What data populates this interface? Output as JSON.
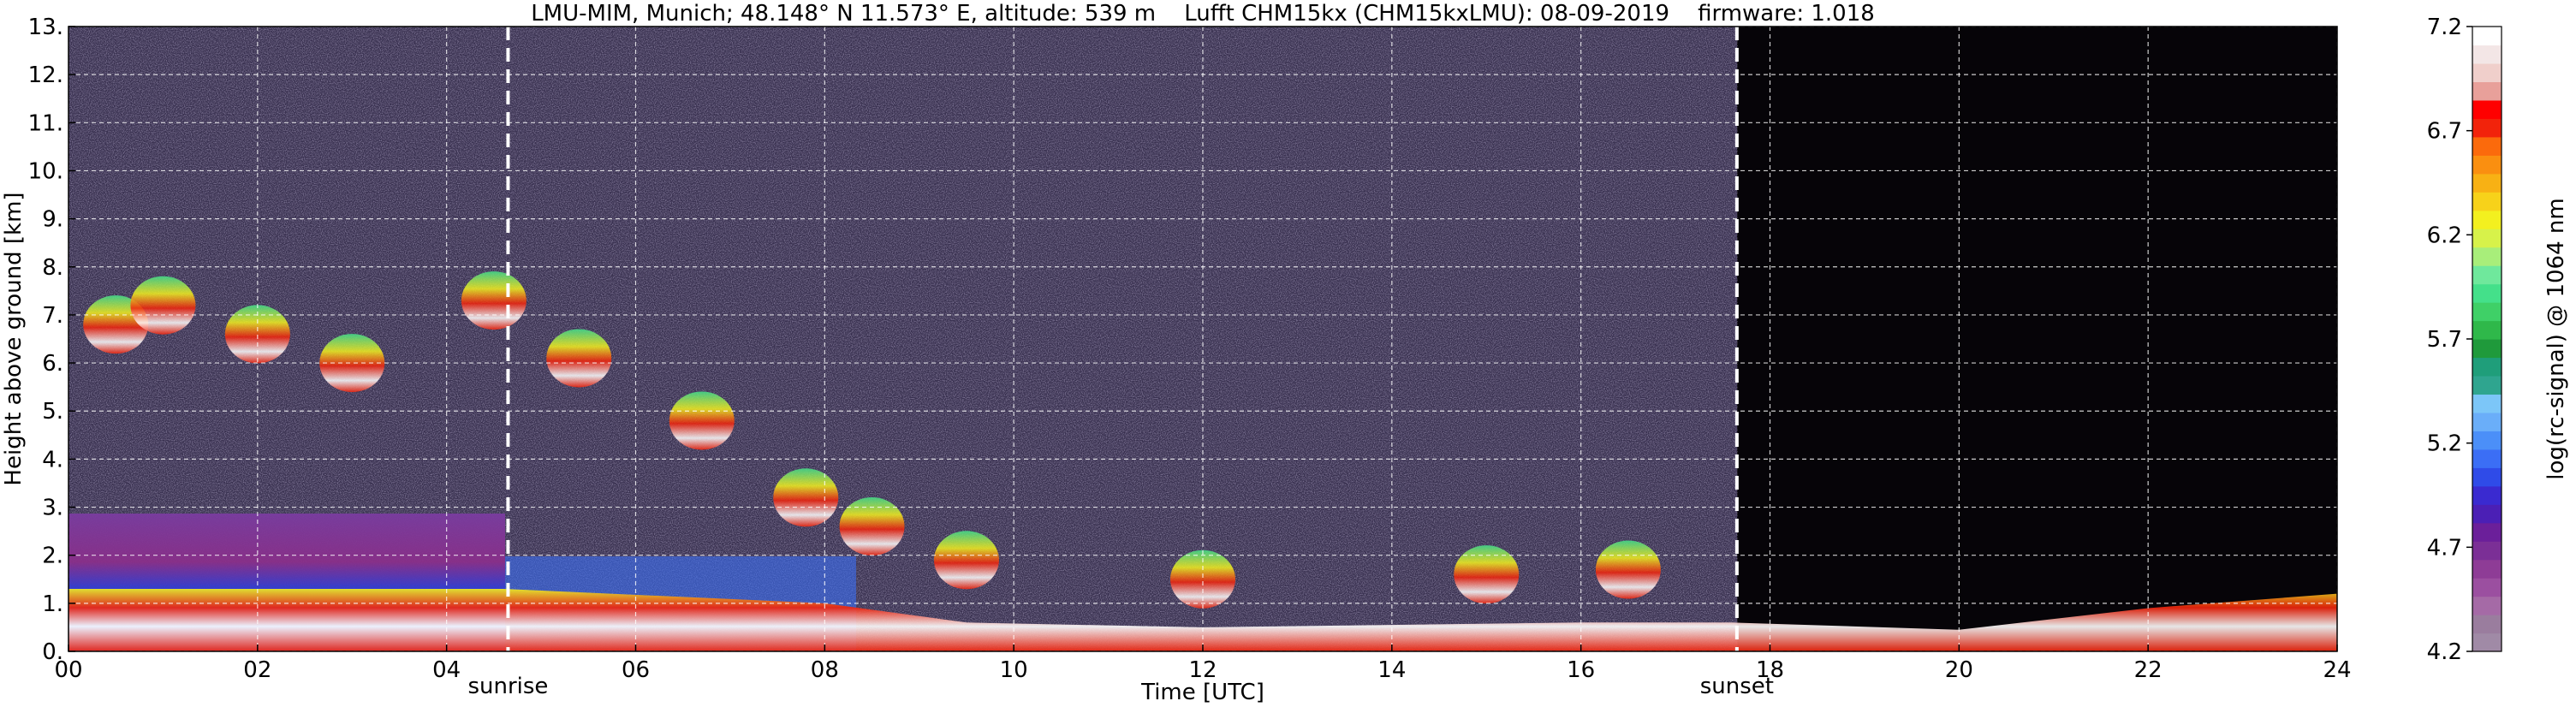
{
  "chart_data": {
    "type": "heatmap",
    "title": "LMU-MIM, Munich; 48.148° N 11.573° E, altitude: 539 m    Lufft CHM15kx (CHM15kxLMU): 08-09-2019    firmware: 1.018",
    "xlabel": "Time [UTC]",
    "ylabel": "Height above ground [km]",
    "xlim": [
      0,
      24
    ],
    "ylim": [
      0,
      13
    ],
    "x_ticks": [
      "00",
      "02",
      "04",
      "06",
      "08",
      "10",
      "12",
      "14",
      "16",
      "18",
      "20",
      "22",
      "24"
    ],
    "y_ticks": [
      "0.",
      "1.",
      "2.",
      "3.",
      "4.",
      "5.",
      "6.",
      "7.",
      "8.",
      "9.",
      "10.",
      "11.",
      "12.",
      "13."
    ],
    "grid": true,
    "markers": [
      {
        "label": "sunrise",
        "x": 4.65
      },
      {
        "label": "sunset",
        "x": 17.65
      }
    ],
    "colorbar": {
      "label": "log(rc-signal) @ 1064 nm",
      "range": [
        4.2,
        7.2
      ],
      "ticks": [
        "4.2",
        "4.7",
        "5.2",
        "5.7",
        "6.2",
        "6.7",
        "7.2"
      ],
      "colors": [
        "#a08aa6",
        "#9a7d9e",
        "#a56aa6",
        "#9b4fa0",
        "#8e3c96",
        "#7b2f96",
        "#6b1f9a",
        "#4b1fb5",
        "#3a2ad0",
        "#2f4be8",
        "#3b6ef5",
        "#4b8ff8",
        "#6aaef9",
        "#7cc6f8",
        "#2fa58f",
        "#1f9e7a",
        "#1f9a3b",
        "#2fb84a",
        "#3fd067",
        "#44e08a",
        "#6fe89c",
        "#a8ee7a",
        "#d7f24a",
        "#f3f01f",
        "#f7d21a",
        "#f8b114",
        "#fa8f10",
        "#fb6a0c",
        "#f2230b",
        "#ff0000",
        "#e8a09a",
        "#f0cfcb",
        "#f3e6e6",
        "#ffffff"
      ]
    },
    "layers": [
      {
        "name": "aerosol-layer",
        "points": [
          [
            0,
            1.3
          ],
          [
            2,
            1.3
          ],
          [
            4,
            1.3
          ],
          [
            4.6,
            1.3
          ],
          [
            8,
            1.0
          ],
          [
            9.5,
            0.6
          ],
          [
            12,
            0.5
          ],
          [
            16,
            0.6
          ],
          [
            17.6,
            0.6
          ],
          [
            20,
            0.45
          ],
          [
            22,
            0.9
          ],
          [
            24,
            1.2
          ]
        ]
      },
      {
        "name": "cloud-tracks",
        "points": [
          [
            0.5,
            6.8
          ],
          [
            1,
            7.2
          ],
          [
            2,
            6.6
          ],
          [
            3,
            6.0
          ],
          [
            4.5,
            7.3
          ],
          [
            5.4,
            6.1
          ],
          [
            6.7,
            4.8
          ],
          [
            7.8,
            3.2
          ],
          [
            8.5,
            2.6
          ],
          [
            9.5,
            1.9
          ],
          [
            12,
            1.5
          ],
          [
            15,
            1.6
          ],
          [
            16.5,
            1.7
          ]
        ]
      }
    ]
  }
}
